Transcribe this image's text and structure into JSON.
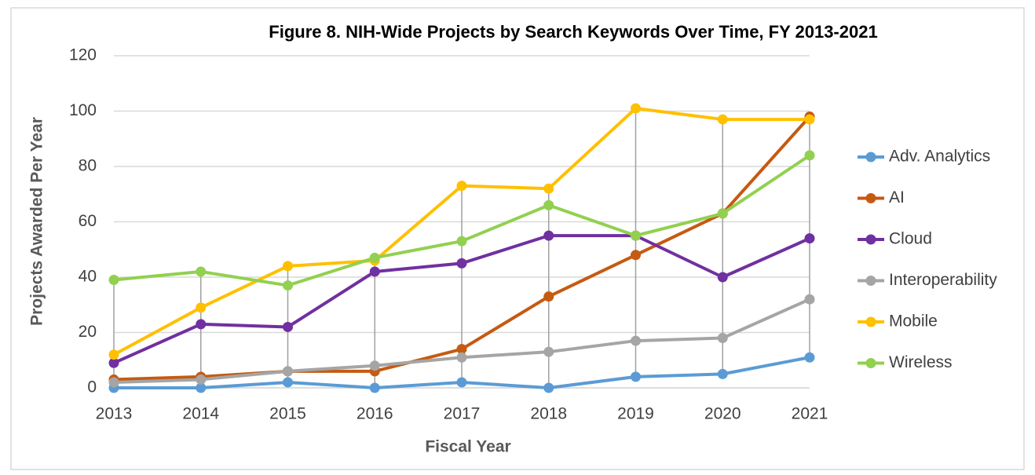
{
  "chart_data": {
    "type": "line",
    "title": "Figure 8. NIH-Wide Projects by Search Keywords Over Time, FY 2013-2021",
    "xlabel": "Fiscal Year",
    "ylabel": "Projects Awarded Per Year",
    "categories": [
      "2013",
      "2014",
      "2015",
      "2016",
      "2017",
      "2018",
      "2019",
      "2020",
      "2021"
    ],
    "series": [
      {
        "name": "Adv. Analytics",
        "color": "#5b9bd5",
        "values": [
          0,
          0,
          2,
          0,
          2,
          0,
          4,
          5,
          11
        ]
      },
      {
        "name": "AI",
        "color": "#c55a11",
        "values": [
          3,
          4,
          6,
          6,
          14,
          33,
          48,
          63,
          98
        ]
      },
      {
        "name": "Cloud",
        "color": "#7030a0",
        "values": [
          9,
          23,
          22,
          42,
          45,
          55,
          55,
          40,
          54
        ]
      },
      {
        "name": "Interoperability",
        "color": "#a5a5a5",
        "values": [
          2,
          3,
          6,
          8,
          11,
          13,
          17,
          18,
          32
        ]
      },
      {
        "name": "Mobile",
        "color": "#ffc000",
        "values": [
          12,
          29,
          44,
          46,
          73,
          72,
          101,
          97,
          97
        ]
      },
      {
        "name": "Wireless",
        "color": "#92d050",
        "values": [
          39,
          42,
          37,
          47,
          53,
          66,
          55,
          63,
          84
        ]
      }
    ],
    "ylim": [
      0,
      120
    ],
    "yticks": [
      0,
      20,
      40,
      60,
      80,
      100,
      120
    ],
    "grid": true,
    "legend": "right"
  }
}
